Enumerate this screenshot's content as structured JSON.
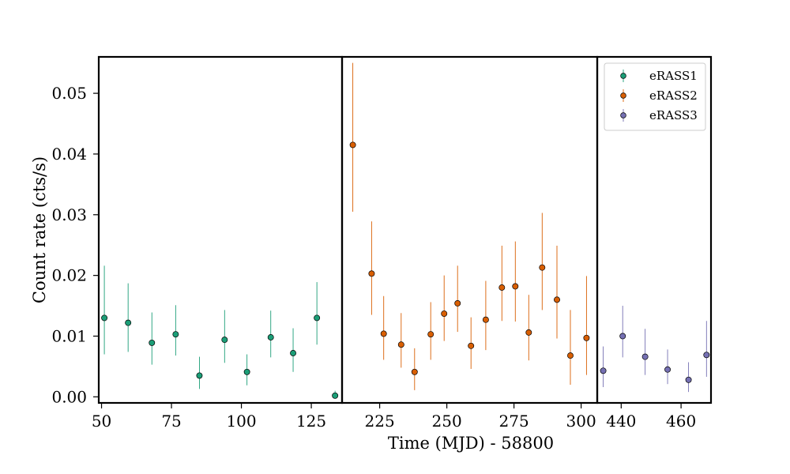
{
  "chart_data": {
    "type": "scatter",
    "xlabel": "Time (MJD) - 58800",
    "ylabel": "Count rate (cts/s)",
    "ylim": [
      -0.001,
      0.056
    ],
    "y_ticks": [
      0.0,
      0.01,
      0.02,
      0.03,
      0.04,
      0.05
    ],
    "y_tick_labels": [
      "0.00",
      "0.01",
      "0.02",
      "0.03",
      "0.04",
      "0.05"
    ],
    "grid": false,
    "legend_position": "top-right",
    "broken_x_axis": true,
    "panels": [
      {
        "xlim": [
          49,
          136
        ],
        "x_ticks": [
          50,
          75,
          100,
          125
        ],
        "x_tick_labels": [
          "50",
          "75",
          "100",
          "125"
        ]
      },
      {
        "xlim": [
          211,
          306
        ],
        "x_ticks": [
          225,
          250,
          275,
          300
        ],
        "x_tick_labels": [
          "225",
          "250",
          "275",
          "300"
        ]
      },
      {
        "xlim": [
          432,
          470
        ],
        "x_ticks": [
          440,
          460
        ],
        "x_tick_labels": [
          "440",
          "460"
        ]
      }
    ],
    "series": [
      {
        "name": "eRASS1",
        "color": "#1b9e77",
        "panel": 0,
        "points": [
          {
            "x": 51.0,
            "y": 0.013,
            "lo": 0.007,
            "hi": 0.0216
          },
          {
            "x": 59.5,
            "y": 0.0122,
            "lo": 0.0074,
            "hi": 0.0187
          },
          {
            "x": 68.0,
            "y": 0.0089,
            "lo": 0.0053,
            "hi": 0.0139
          },
          {
            "x": 76.5,
            "y": 0.0103,
            "lo": 0.0068,
            "hi": 0.0151
          },
          {
            "x": 85.0,
            "y": 0.0035,
            "lo": 0.0013,
            "hi": 0.0066
          },
          {
            "x": 94.0,
            "y": 0.0094,
            "lo": 0.0056,
            "hi": 0.0143
          },
          {
            "x": 102.0,
            "y": 0.0041,
            "lo": 0.0019,
            "hi": 0.007
          },
          {
            "x": 110.5,
            "y": 0.0098,
            "lo": 0.0065,
            "hi": 0.0142
          },
          {
            "x": 118.5,
            "y": 0.0072,
            "lo": 0.0041,
            "hi": 0.0113
          },
          {
            "x": 127.0,
            "y": 0.013,
            "lo": 0.0086,
            "hi": 0.0189
          },
          {
            "x": 133.5,
            "y": 0.0002,
            "lo": 0.0,
            "hi": 0.001
          }
        ]
      },
      {
        "name": "eRASS2",
        "color": "#d95f02",
        "panel": 1,
        "points": [
          {
            "x": 215.0,
            "y": 0.0415,
            "lo": 0.0305,
            "hi": 0.055
          },
          {
            "x": 222.0,
            "y": 0.0203,
            "lo": 0.0135,
            "hi": 0.0289
          },
          {
            "x": 226.5,
            "y": 0.0104,
            "lo": 0.0061,
            "hi": 0.0166
          },
          {
            "x": 233.0,
            "y": 0.0086,
            "lo": 0.0048,
            "hi": 0.0138
          },
          {
            "x": 238.0,
            "y": 0.0041,
            "lo": 0.0011,
            "hi": 0.008
          },
          {
            "x": 244.0,
            "y": 0.0103,
            "lo": 0.0061,
            "hi": 0.0156
          },
          {
            "x": 249.0,
            "y": 0.0137,
            "lo": 0.0092,
            "hi": 0.02
          },
          {
            "x": 254.0,
            "y": 0.0154,
            "lo": 0.0107,
            "hi": 0.0216
          },
          {
            "x": 259.0,
            "y": 0.0084,
            "lo": 0.0046,
            "hi": 0.0131
          },
          {
            "x": 264.5,
            "y": 0.0127,
            "lo": 0.0077,
            "hi": 0.0191
          },
          {
            "x": 270.5,
            "y": 0.018,
            "lo": 0.0125,
            "hi": 0.0249
          },
          {
            "x": 275.5,
            "y": 0.0182,
            "lo": 0.0124,
            "hi": 0.0256
          },
          {
            "x": 280.5,
            "y": 0.0106,
            "lo": 0.006,
            "hi": 0.0168
          },
          {
            "x": 285.5,
            "y": 0.0213,
            "lo": 0.0143,
            "hi": 0.0303
          },
          {
            "x": 291.0,
            "y": 0.016,
            "lo": 0.0096,
            "hi": 0.0249
          },
          {
            "x": 296.0,
            "y": 0.0068,
            "lo": 0.002,
            "hi": 0.0143
          },
          {
            "x": 302.0,
            "y": 0.0097,
            "lo": 0.0036,
            "hi": 0.0199
          }
        ]
      },
      {
        "name": "eRASS3",
        "color": "#7570b3",
        "panel": 2,
        "points": [
          {
            "x": 434.0,
            "y": 0.0043,
            "lo": 0.0016,
            "hi": 0.0083
          },
          {
            "x": 440.5,
            "y": 0.01,
            "lo": 0.0065,
            "hi": 0.015
          },
          {
            "x": 448.0,
            "y": 0.0066,
            "lo": 0.0036,
            "hi": 0.0112
          },
          {
            "x": 455.5,
            "y": 0.0045,
            "lo": 0.0021,
            "hi": 0.0078
          },
          {
            "x": 462.5,
            "y": 0.0028,
            "lo": 0.0008,
            "hi": 0.0057
          },
          {
            "x": 468.5,
            "y": 0.0069,
            "lo": 0.0033,
            "hi": 0.0125
          }
        ]
      }
    ]
  }
}
